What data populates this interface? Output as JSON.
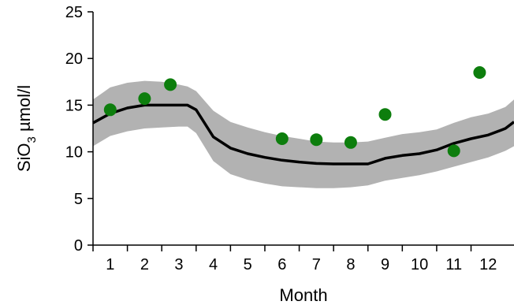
{
  "chart_data": {
    "type": "line",
    "xlabel": "Month",
    "ylabel": "SiO",
    "ylabel_subscript": "3",
    "ylabel_suffix": " µmol/l",
    "xlim": [
      0.5,
      12.75
    ],
    "ylim": [
      0,
      25
    ],
    "xticks": [
      1,
      2,
      3,
      4,
      5,
      6,
      7,
      8,
      9,
      10,
      11,
      12
    ],
    "yticks": [
      0,
      5,
      10,
      15,
      20,
      25
    ],
    "grid": false,
    "colors": {
      "line": "#000000",
      "band": "#b2b2b2",
      "points": "#0d7e0d"
    },
    "series": [
      {
        "kind": "line",
        "x": [
          0.5,
          1.0,
          1.5,
          2.0,
          2.5,
          3.0,
          3.25,
          3.5,
          4.0,
          4.5,
          5.0,
          5.5,
          6.0,
          6.5,
          7.0,
          7.5,
          8.0,
          8.5,
          9.0,
          9.5,
          10.0,
          10.5,
          11.0,
          11.5,
          12.0,
          12.5,
          12.75
        ],
        "y": [
          13.1,
          14.1,
          14.7,
          15.0,
          15.0,
          15.0,
          15.0,
          14.5,
          11.6,
          10.4,
          9.8,
          9.4,
          9.1,
          8.9,
          8.75,
          8.7,
          8.7,
          8.7,
          9.3,
          9.6,
          9.8,
          10.2,
          10.9,
          11.4,
          11.8,
          12.5,
          13.2
        ]
      },
      {
        "kind": "band",
        "x": [
          0.5,
          1.0,
          1.5,
          2.0,
          2.5,
          3.0,
          3.25,
          3.5,
          4.0,
          4.5,
          5.0,
          5.5,
          6.0,
          6.5,
          7.0,
          7.5,
          8.0,
          8.5,
          9.0,
          9.5,
          10.0,
          10.5,
          11.0,
          11.5,
          12.0,
          12.5,
          12.75
        ],
        "upper": [
          15.6,
          16.9,
          17.4,
          17.6,
          17.5,
          17.2,
          17.0,
          16.5,
          14.4,
          13.2,
          12.6,
          12.1,
          11.7,
          11.4,
          11.1,
          11.0,
          11.0,
          11.1,
          11.5,
          11.9,
          12.1,
          12.4,
          13.1,
          13.7,
          14.1,
          14.8,
          15.6
        ],
        "lower": [
          10.6,
          11.7,
          12.2,
          12.5,
          12.6,
          12.7,
          12.7,
          12.0,
          9.0,
          7.6,
          7.0,
          6.6,
          6.3,
          6.2,
          6.1,
          6.1,
          6.2,
          6.4,
          6.9,
          7.2,
          7.5,
          7.9,
          8.4,
          8.9,
          9.4,
          10.1,
          10.6
        ]
      },
      {
        "kind": "scatter",
        "x": [
          1.0,
          2.0,
          2.75,
          6.0,
          7.0,
          8.0,
          9.0,
          11.0,
          11.75
        ],
        "y": [
          14.5,
          15.7,
          17.2,
          11.4,
          11.3,
          11.0,
          14.0,
          10.1,
          18.5
        ]
      }
    ]
  }
}
